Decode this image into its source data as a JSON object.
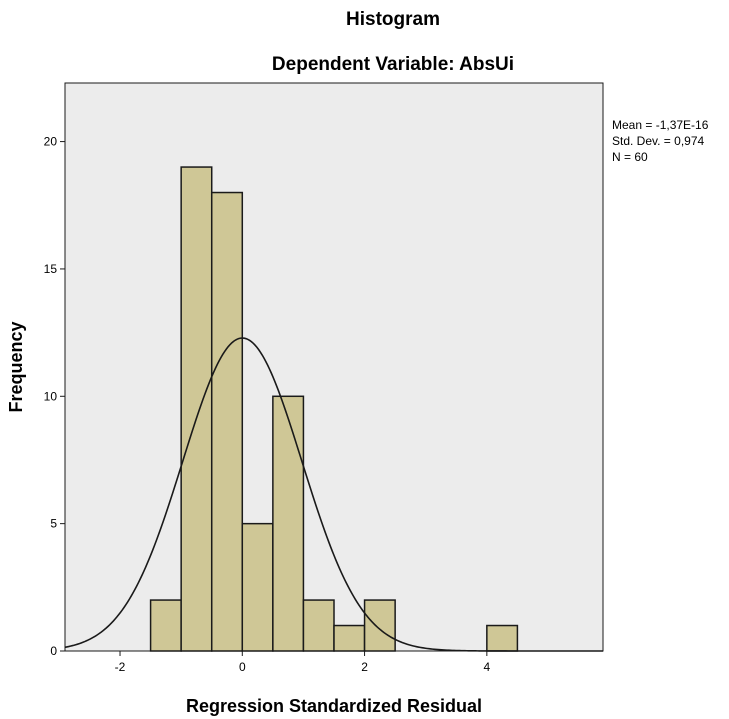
{
  "chart_data": {
    "type": "bar",
    "title": "Histogram",
    "subtitle": "Dependent Variable: AbsUi",
    "xlabel": "Regression Standardized Residual",
    "ylabel": "Frequency",
    "xlim": [
      -2.9,
      5.9
    ],
    "ylim": [
      0,
      22.3
    ],
    "x_ticks": [
      -2,
      0,
      2,
      4
    ],
    "y_ticks": [
      0,
      5,
      10,
      15,
      20
    ],
    "bin_width": 0.5,
    "bins": [
      {
        "start": -1.5,
        "end": -1.0,
        "count": 2
      },
      {
        "start": -1.0,
        "end": -0.5,
        "count": 19
      },
      {
        "start": -0.5,
        "end": 0.0,
        "count": 18
      },
      {
        "start": 0.0,
        "end": 0.5,
        "count": 5
      },
      {
        "start": 0.5,
        "end": 1.0,
        "count": 10
      },
      {
        "start": 1.0,
        "end": 1.5,
        "count": 2
      },
      {
        "start": 1.5,
        "end": 2.0,
        "count": 1
      },
      {
        "start": 2.0,
        "end": 2.5,
        "count": 2
      },
      {
        "start": 4.0,
        "end": 4.5,
        "count": 1
      }
    ],
    "normal_curve": {
      "mean": -1.37e-16,
      "std_dev": 0.974,
      "n": 60
    },
    "stats": {
      "mean": "Mean = -1,37E-16",
      "std_dev": "Std. Dev. = 0,974",
      "n": "N = 60"
    },
    "colors": {
      "bar_fill": "#cfc796",
      "bar_stroke": "#1a1a1a",
      "plot_background": "#ececec",
      "curve": "#1a1a1a"
    },
    "grid": false
  }
}
